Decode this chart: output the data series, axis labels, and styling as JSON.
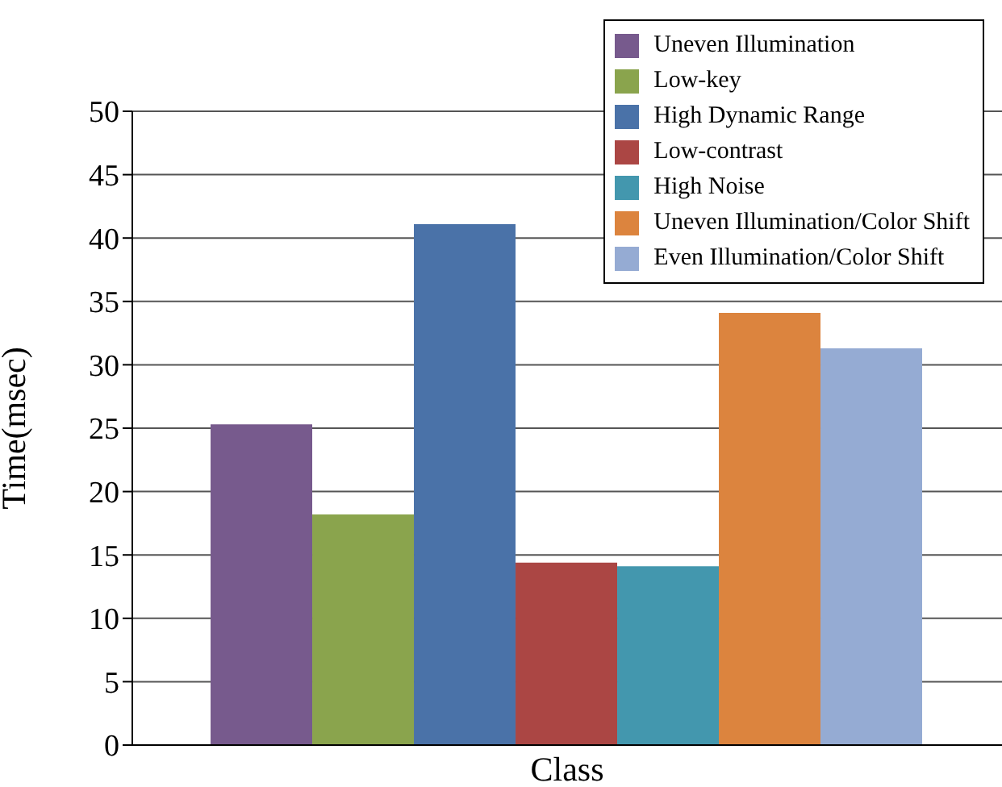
{
  "chart_data": {
    "type": "bar",
    "xlabel": "Class",
    "ylabel": "Time(msec)",
    "categories": [
      null
    ],
    "series": [
      {
        "name": "Uneven Illumination",
        "color": "#775a8d",
        "values": [
          25.3
        ]
      },
      {
        "name": "Low-key",
        "color": "#8aa44d",
        "values": [
          18.2
        ]
      },
      {
        "name": "High Dynamic Range",
        "color": "#4a72a8",
        "values": [
          41.1
        ]
      },
      {
        "name": "Low-contrast",
        "color": "#ab4644",
        "values": [
          14.4
        ]
      },
      {
        "name": "High Noise",
        "color": "#4397ae",
        "values": [
          14.1
        ]
      },
      {
        "name": "Uneven Illumination/Color Shift",
        "color": "#dc843e",
        "values": [
          34.1
        ]
      },
      {
        "name": "Even Illumination/Color Shift",
        "color": "#95abd3",
        "values": [
          31.3
        ]
      }
    ],
    "ylim": [
      0,
      50
    ],
    "yticks": [
      0,
      5,
      10,
      15,
      20,
      25,
      30,
      35,
      40,
      45,
      50
    ],
    "grid": "y",
    "legend": "top right"
  }
}
